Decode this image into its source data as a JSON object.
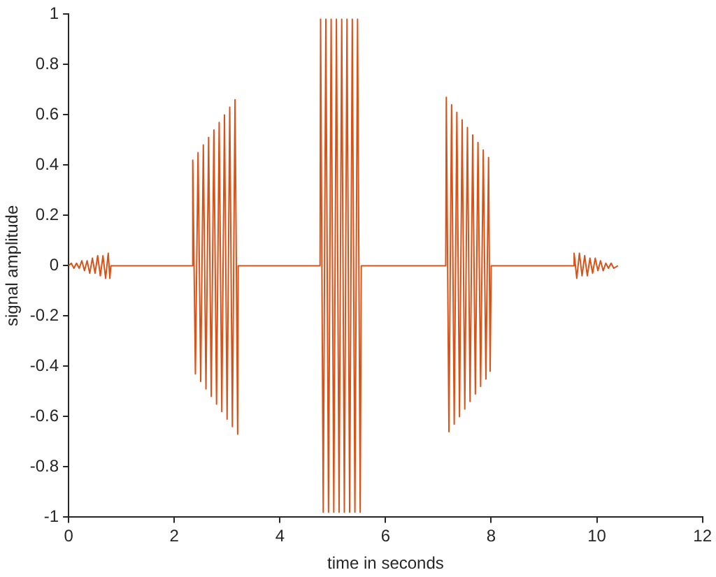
{
  "chart_data": {
    "type": "line",
    "xlabel": "time in seconds",
    "ylabel": "signal amplitude",
    "xlim": [
      0,
      12
    ],
    "xticks": [
      0,
      2,
      4,
      6,
      8,
      10,
      12
    ],
    "ylim": [
      -1,
      1
    ],
    "yticks": [
      -1,
      -0.8,
      -0.6,
      -0.4,
      -0.2,
      0,
      0.2,
      0.4,
      0.6,
      0.8,
      1
    ],
    "grid": false,
    "legend": false,
    "marker": "none",
    "line_style": "solid",
    "series": [
      {
        "color": "#d95319",
        "x": [
          0,
          0.05,
          0.1,
          0.15,
          0.2,
          0.25,
          0.3,
          0.35,
          0.4,
          0.45,
          0.5,
          0.55,
          0.6,
          0.65,
          0.7,
          0.75,
          0.78,
          0.8,
          2.34,
          2.35,
          2.4,
          2.45,
          2.5,
          2.55,
          2.6,
          2.65,
          2.7,
          2.75,
          2.8,
          2.85,
          2.9,
          2.95,
          3.0,
          3.05,
          3.1,
          3.15,
          3.2,
          3.21,
          4.76,
          4.77,
          4.82,
          4.87,
          4.92,
          4.97,
          5.02,
          5.07,
          5.12,
          5.17,
          5.22,
          5.27,
          5.32,
          5.37,
          5.42,
          5.47,
          5.52,
          5.54,
          7.14,
          7.15,
          7.2,
          7.25,
          7.3,
          7.35,
          7.4,
          7.45,
          7.5,
          7.55,
          7.6,
          7.65,
          7.7,
          7.75,
          7.8,
          7.85,
          7.9,
          7.95,
          7.98,
          8.0,
          9.56,
          9.57,
          9.62,
          9.67,
          9.72,
          9.77,
          9.82,
          9.87,
          9.92,
          9.97,
          10.02,
          10.07,
          10.12,
          10.17,
          10.22,
          10.27,
          10.32,
          10.4
        ],
        "values": [
          0,
          0.01,
          -0.01,
          0.01,
          -0.01,
          0.02,
          -0.02,
          0.02,
          -0.03,
          0.03,
          -0.03,
          0.04,
          -0.04,
          0.04,
          -0.05,
          0.05,
          -0.05,
          0,
          0,
          0.42,
          -0.43,
          0.45,
          -0.46,
          0.48,
          -0.49,
          0.51,
          -0.52,
          0.54,
          -0.55,
          0.57,
          -0.58,
          0.6,
          -0.61,
          0.63,
          -0.64,
          0.66,
          -0.67,
          0,
          0,
          0.98,
          -0.98,
          0.98,
          -0.98,
          0.98,
          -0.98,
          0.98,
          -0.98,
          0.98,
          -0.98,
          0.98,
          -0.98,
          0.98,
          -0.98,
          0.98,
          -0.98,
          0,
          0,
          0.67,
          -0.66,
          0.64,
          -0.63,
          0.61,
          -0.6,
          0.58,
          -0.57,
          0.55,
          -0.54,
          0.52,
          -0.51,
          0.49,
          -0.48,
          0.46,
          -0.45,
          0.43,
          -0.42,
          0,
          0,
          0.05,
          -0.05,
          0.05,
          -0.04,
          0.04,
          -0.04,
          0.03,
          -0.03,
          0.03,
          -0.02,
          0.02,
          -0.02,
          0.01,
          -0.01,
          0.01,
          -0.01,
          0
        ]
      }
    ]
  }
}
